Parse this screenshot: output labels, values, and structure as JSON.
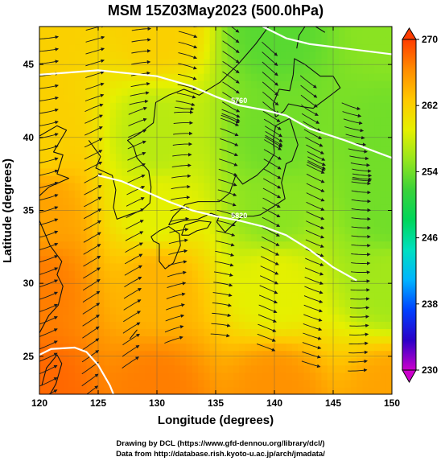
{
  "chart_data": {
    "type": "heatmap",
    "title": "MSM 15Z03May2023 (500.0hPa)",
    "xlabel": "Longitude (degrees)",
    "ylabel": "Latitude  (degrees)",
    "xlim": [
      120,
      150
    ],
    "ylim": [
      22.4,
      47.6
    ],
    "x_ticks": [
      120,
      125,
      130,
      135,
      140,
      145,
      150
    ],
    "y_ticks": [
      25,
      30,
      35,
      40,
      45
    ],
    "colorbar": {
      "range": [
        230,
        270
      ],
      "ticks": [
        230,
        238,
        246,
        254,
        262,
        270
      ],
      "colors": [
        "#cc00cc",
        "#2a00c8",
        "#0040ff",
        "#00b4ff",
        "#00e0c0",
        "#00d65a",
        "#3ad23a",
        "#96e61e",
        "#e6f000",
        "#ffc800",
        "#ff8c00",
        "#ff3c00"
      ]
    },
    "contour_labels": [
      "5760",
      "5820"
    ],
    "contours": [
      {
        "label": "5760",
        "points": [
          [
            120,
            44.3
          ],
          [
            125,
            44.6
          ],
          [
            130,
            44.2
          ],
          [
            133,
            43.5
          ],
          [
            135,
            42.8
          ],
          [
            137,
            42.2
          ],
          [
            139,
            41.9
          ],
          [
            141,
            41.5
          ],
          [
            143,
            40.6
          ],
          [
            146,
            39.8
          ],
          [
            150,
            38.6
          ]
        ]
      },
      {
        "label": "5820",
        "points": [
          [
            125,
            37.4
          ],
          [
            127,
            37.0
          ],
          [
            129,
            36.3
          ],
          [
            131,
            35.6
          ],
          [
            133,
            35.0
          ],
          [
            135,
            34.6
          ],
          [
            137,
            34.3
          ],
          [
            139,
            33.9
          ],
          [
            141,
            33.3
          ],
          [
            143,
            32.3
          ],
          [
            145,
            31.1
          ],
          [
            147,
            30.2
          ]
        ]
      },
      {
        "label": "",
        "points": [
          [
            139,
            47.6
          ],
          [
            141,
            46.8
          ],
          [
            143,
            46.4
          ],
          [
            146,
            46.1
          ],
          [
            150,
            45.7
          ]
        ]
      },
      {
        "label": "",
        "points": [
          [
            120,
            25.1
          ],
          [
            121,
            25.5
          ],
          [
            123,
            25.6
          ],
          [
            124,
            25.3
          ],
          [
            125,
            24.4
          ],
          [
            126,
            23.0
          ],
          [
            126.3,
            22.4
          ]
        ]
      }
    ],
    "temperature_samples": [
      {
        "lon": 120,
        "lat": 47.6,
        "value": 262
      },
      {
        "lon": 130,
        "lat": 47.6,
        "value": 262
      },
      {
        "lon": 140,
        "lat": 47.6,
        "value": 253
      },
      {
        "lon": 150,
        "lat": 47.6,
        "value": 255
      },
      {
        "lon": 120,
        "lat": 40,
        "value": 262
      },
      {
        "lon": 130,
        "lat": 40,
        "value": 257
      },
      {
        "lon": 140,
        "lat": 40,
        "value": 254
      },
      {
        "lon": 150,
        "lat": 40,
        "value": 254
      },
      {
        "lon": 120,
        "lat": 35,
        "value": 265
      },
      {
        "lon": 130,
        "lat": 35,
        "value": 259
      },
      {
        "lon": 140,
        "lat": 35,
        "value": 255
      },
      {
        "lon": 150,
        "lat": 35,
        "value": 254
      },
      {
        "lon": 120,
        "lat": 30,
        "value": 267
      },
      {
        "lon": 130,
        "lat": 30,
        "value": 264
      },
      {
        "lon": 140,
        "lat": 30,
        "value": 259
      },
      {
        "lon": 150,
        "lat": 30,
        "value": 256
      },
      {
        "lon": 120,
        "lat": 22.4,
        "value": 268
      },
      {
        "lon": 130,
        "lat": 22.4,
        "value": 267
      },
      {
        "lon": 140,
        "lat": 22.4,
        "value": 266
      },
      {
        "lon": 150,
        "lat": 22.4,
        "value": 265
      }
    ],
    "grid": true,
    "streamlines": true
  },
  "credits": {
    "line1": "Drawing by DCL (https://www.gfd-dennou.org/library/dcl/)",
    "line2": "Data from http://database.rish.kyoto-u.ac.jp/arch/jmadata/"
  }
}
